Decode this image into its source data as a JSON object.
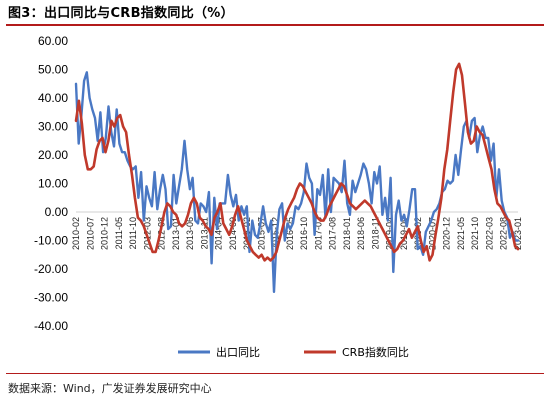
{
  "header": {
    "title": "图3：出口同比与CRB指数同比（%）"
  },
  "footer": {
    "source": "数据来源：Wind，广发证券发展研究中心"
  },
  "colors": {
    "series1": "#4a78c4",
    "series2": "#c0392b",
    "rule": "#b31b1b"
  },
  "chart_data": {
    "type": "line",
    "title": "出口同比与CRB指数同比（%）",
    "ylim": [
      -40,
      60
    ],
    "yticks": [
      "60.00",
      "50.00",
      "40.00",
      "30.00",
      "20.00",
      "10.00",
      "0.00",
      "-10.00",
      "-20.00",
      "-30.00",
      "-40.00"
    ],
    "xticks": [
      "2010-02",
      "2010-07",
      "2010-12",
      "2011-05",
      "2011-10",
      "2012-03",
      "2012-08",
      "2013-01",
      "2013-06",
      "2013-11",
      "2014-04",
      "2014-09",
      "2015-02",
      "2015-07",
      "2015-12",
      "2016-05",
      "2016-10",
      "2017-03",
      "2017-08",
      "2018-01",
      "2018-06",
      "2018-11",
      "2019-04",
      "2019-09",
      "2020-02",
      "2020-07",
      "2020-12",
      "2021-05",
      "2021-10",
      "2022-03",
      "2022-08",
      "2023-01"
    ],
    "legend_position": "bottom",
    "grid": false,
    "series": [
      {
        "name": "出口同比",
        "values": [
          45,
          24,
          34,
          46,
          49,
          40,
          36,
          33,
          25,
          35,
          21,
          26,
          37,
          28,
          23,
          36,
          24,
          21,
          21,
          18,
          16,
          15,
          16,
          5,
          14,
          -3,
          9,
          5,
          2,
          14,
          1,
          8,
          13,
          8,
          -6,
          -5,
          13,
          3,
          9,
          15,
          25,
          15,
          8,
          12,
          -3,
          -4,
          3,
          2,
          0,
          7,
          -18,
          5,
          -6,
          3,
          3,
          3,
          13,
          6,
          2,
          6,
          -3,
          2,
          -1,
          2,
          -14,
          -3,
          -8,
          -9,
          -4,
          2,
          -4,
          -7,
          -3,
          -28,
          -8,
          1,
          3,
          -10,
          -4,
          -6,
          -4,
          2,
          1,
          3,
          7,
          17,
          12,
          10,
          -8,
          8,
          6,
          13,
          -2,
          15,
          0,
          12,
          11,
          10,
          7,
          18,
          3,
          -1,
          11,
          7,
          10,
          13,
          17,
          15,
          10,
          3,
          14,
          10,
          16,
          -1,
          5,
          -3,
          12,
          -21,
          -1,
          4,
          -3,
          -1,
          -5,
          1,
          8,
          8,
          -13,
          -12,
          -15,
          -7,
          -5,
          -3,
          0,
          1,
          3,
          7,
          8,
          11,
          10,
          11,
          20,
          13,
          22,
          30,
          32,
          26,
          32,
          33,
          21,
          27,
          30,
          26,
          26,
          18,
          24,
          5,
          15,
          4,
          0,
          -2,
          -9,
          -7,
          -10,
          -10
        ]
      },
      {
        "name": "CRB指数同比",
        "values": [
          32,
          39,
          31,
          20,
          15,
          15,
          16,
          22,
          25,
          26,
          21,
          25,
          32,
          30,
          33,
          34,
          30,
          28,
          20,
          13,
          5,
          -2,
          -3,
          -5,
          -8,
          -11,
          -14,
          -14,
          -10,
          -5,
          0,
          3,
          2,
          0,
          -1,
          -4,
          -5,
          -4,
          -1,
          3,
          5,
          3,
          -2,
          -3,
          -5,
          -6,
          -8,
          -2,
          0,
          3,
          -4,
          -6,
          -8,
          -5,
          -1,
          2,
          -2,
          -6,
          -10,
          -12,
          -14,
          -15,
          -16,
          -15,
          -17,
          -16,
          -17,
          -16,
          -14,
          -10,
          -6,
          -2,
          1,
          3,
          5,
          8,
          10,
          9,
          7,
          5,
          3,
          0,
          -2,
          -3,
          -3,
          -1,
          2,
          4,
          6,
          8,
          10,
          9,
          6,
          3,
          2,
          1,
          2,
          3,
          4,
          3,
          2,
          0,
          -2,
          -4,
          -6,
          -8,
          -10,
          -12,
          -14,
          -13,
          -11,
          -10,
          -8,
          -6,
          -9,
          -7,
          -5,
          -10,
          -14,
          -12,
          -17,
          -15,
          -8,
          -2,
          5,
          15,
          22,
          32,
          42,
          50,
          52,
          48,
          38,
          28,
          24,
          25,
          30,
          28,
          27,
          23,
          19,
          15,
          8,
          3,
          2,
          0,
          -2,
          -3,
          -7,
          -12,
          -13
        ]
      }
    ]
  }
}
